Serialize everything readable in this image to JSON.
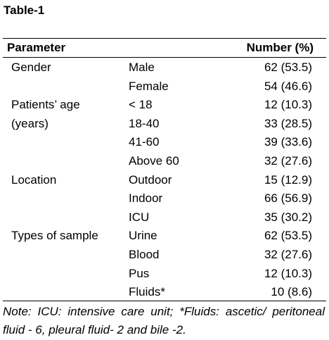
{
  "title": "Table-1",
  "header": {
    "parameter": "Parameter",
    "number": "Number (%)"
  },
  "rows": [
    {
      "param": "Gender",
      "sub": "Male",
      "value": "62 (53.5)"
    },
    {
      "param": "",
      "sub": "Female",
      "value": "54 (46.6)"
    },
    {
      "param": "Patients’ age",
      "sub": "< 18",
      "value": "12 (10.3)"
    },
    {
      "param": "(years)",
      "sub": "18-40",
      "value": "33 (28.5)"
    },
    {
      "param": "",
      "sub": "41-60",
      "value": "39 (33.6)"
    },
    {
      "param": "",
      "sub": "Above 60",
      "value": "32 (27.6)"
    },
    {
      "param": "Location",
      "sub": "Outdoor",
      "value": "15 (12.9)"
    },
    {
      "param": "",
      "sub": "Indoor",
      "value": "66 (56.9)"
    },
    {
      "param": "",
      "sub": "ICU",
      "value": "35 (30.2)"
    },
    {
      "param": "Types of sample",
      "sub": "Urine",
      "value": "62 (53.5)"
    },
    {
      "param": "",
      "sub": "Blood",
      "value": "32 (27.6)"
    },
    {
      "param": "",
      "sub": "Pus",
      "value": "12 (10.3)"
    },
    {
      "param": "",
      "sub": "Fluids*",
      "value": "10 (8.6)"
    }
  ],
  "note": "Note: ICU: intensive care unit; *Fluids: ascetic/ peritoneal fluid - 6, pleural fluid- 2 and bile -2."
}
